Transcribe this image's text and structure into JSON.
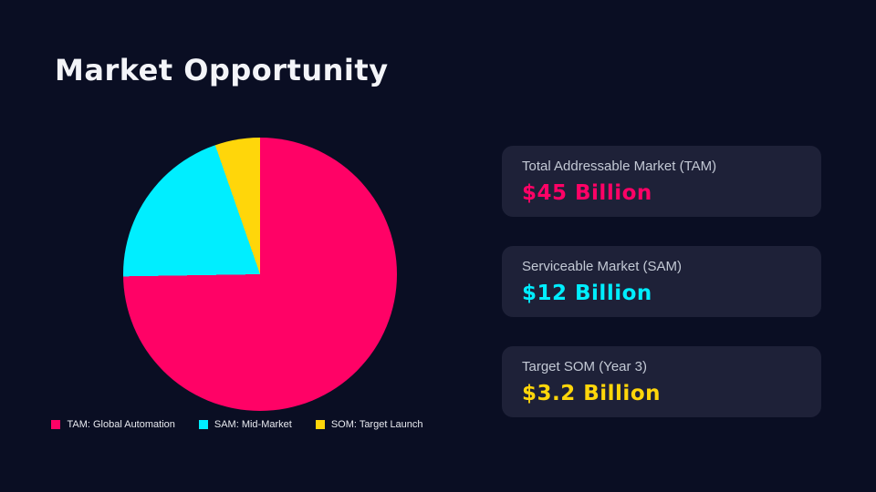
{
  "slide": {
    "title": "Market Opportunity"
  },
  "colors": {
    "background": "#0A0E23",
    "card_background": "#1E2138",
    "title_text": "#F3F4F8",
    "label_text": "#C3C9D5",
    "legend_text": "#E8EAF0",
    "tam_pink": "#FF0266",
    "sam_cyan": "#00EEFF",
    "som_yellow": "#FFD60A"
  },
  "chart_data": {
    "type": "pie",
    "categories": [
      "TAM: Global Automation",
      "SAM: Mid-Market",
      "SOM: Target Launch"
    ],
    "values": [
      45,
      12,
      3.2
    ],
    "colors": [
      "#FF0266",
      "#00EEFF",
      "#FFD60A"
    ],
    "title": "Market Opportunity",
    "legend_position": "bottom",
    "start_angle_deg": 0,
    "direction": "clockwise"
  },
  "cards": [
    {
      "label": "Total Addressable Market (TAM)",
      "value": "$45 Billion",
      "color": "#FF0266"
    },
    {
      "label": "Serviceable Market (SAM)",
      "value": "$12 Billion",
      "color": "#00EEFF"
    },
    {
      "label": "Target SOM (Year 3)",
      "value": "$3.2 Billion",
      "color": "#FFD60A"
    }
  ]
}
